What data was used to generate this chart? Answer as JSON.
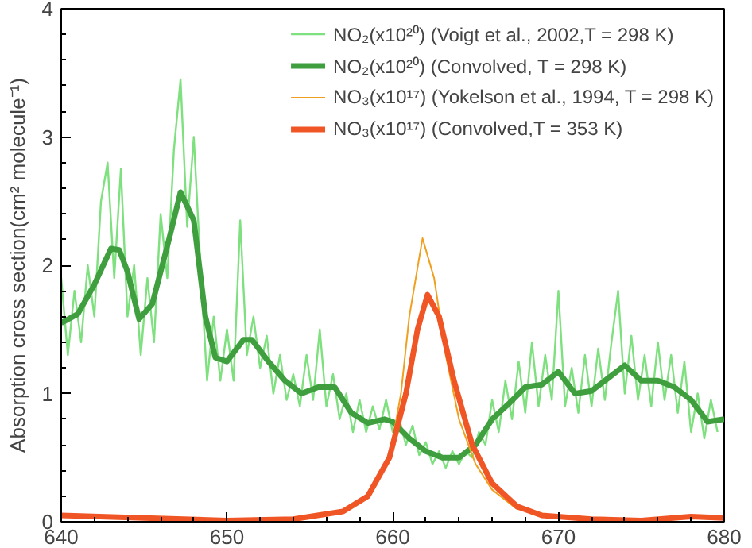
{
  "chart_data": {
    "type": "line",
    "xlim": [
      640,
      680
    ],
    "ylim": [
      0,
      4
    ],
    "xticks": [
      640,
      650,
      660,
      670,
      680
    ],
    "yticks": [
      0,
      1,
      2,
      3,
      4
    ],
    "ylabel": "Absorption cross section(cm² molecule⁻¹)",
    "grid": false,
    "legend": "top right",
    "series": [
      {
        "name": "NO₂(x10²⁰) (Voigt et al., 2002,T = 298 K)",
        "color": "#7ee07e",
        "x": [
          640.0,
          640.4,
          640.8,
          641.2,
          641.6,
          642.0,
          642.4,
          642.8,
          643.2,
          643.6,
          644.0,
          644.4,
          644.8,
          645.2,
          645.6,
          646.0,
          646.4,
          646.8,
          647.2,
          647.6,
          648.0,
          648.4,
          648.8,
          649.2,
          649.6,
          650.0,
          650.4,
          650.8,
          651.2,
          651.6,
          652.0,
          652.4,
          652.8,
          653.2,
          653.6,
          654.0,
          654.4,
          654.8,
          655.2,
          655.6,
          656.0,
          656.4,
          656.8,
          657.2,
          657.6,
          658.0,
          658.4,
          658.8,
          659.2,
          659.6,
          660.0,
          660.4,
          660.8,
          661.2,
          661.6,
          662.0,
          662.4,
          662.8,
          663.2,
          663.6,
          664.0,
          664.4,
          664.8,
          665.2,
          665.6,
          666.0,
          666.4,
          666.8,
          667.2,
          667.6,
          668.0,
          668.4,
          668.8,
          669.2,
          669.6,
          670.0,
          670.4,
          670.8,
          671.2,
          671.6,
          672.0,
          672.4,
          672.8,
          673.2,
          673.6,
          674.0,
          674.4,
          674.8,
          675.2,
          675.6,
          676.0,
          676.4,
          676.8,
          677.2,
          677.6,
          678.0,
          678.4,
          678.8,
          679.2,
          679.6
        ],
        "values": [
          1.9,
          1.3,
          1.8,
          1.4,
          2.0,
          1.6,
          2.5,
          2.8,
          1.9,
          2.75,
          1.6,
          2.0,
          1.3,
          1.9,
          1.4,
          2.4,
          1.9,
          2.9,
          3.45,
          2.3,
          3.0,
          2.0,
          1.1,
          1.6,
          1.1,
          1.5,
          1.1,
          2.35,
          1.3,
          1.6,
          1.2,
          1.45,
          1.0,
          1.3,
          0.95,
          1.15,
          0.9,
          1.3,
          0.95,
          1.5,
          0.9,
          1.15,
          0.8,
          1.0,
          0.7,
          0.95,
          0.7,
          0.9,
          0.72,
          0.95,
          0.7,
          0.8,
          0.6,
          0.75,
          0.52,
          0.62,
          0.45,
          0.55,
          0.42,
          0.55,
          0.45,
          0.55,
          0.5,
          0.7,
          0.6,
          0.95,
          0.7,
          1.1,
          0.8,
          1.25,
          0.85,
          1.4,
          0.9,
          1.3,
          0.95,
          1.8,
          0.9,
          1.2,
          0.85,
          1.3,
          0.9,
          1.35,
          0.95,
          1.4,
          1.8,
          1.0,
          1.45,
          0.95,
          1.3,
          0.9,
          1.4,
          0.95,
          1.3,
          0.85,
          1.25,
          0.7,
          1.0,
          0.65,
          0.95,
          0.7
        ]
      },
      {
        "name": "NO₂(x10²⁰) (Convolved, T = 298 K)",
        "color": "#3f9f3f",
        "x": [
          640,
          641,
          642,
          643,
          643.5,
          644,
          644.7,
          645.5,
          646.5,
          647.2,
          648,
          648.7,
          649.3,
          650,
          651,
          651.5,
          652.5,
          653.5,
          654.5,
          655.5,
          656.5,
          657.5,
          658.5,
          659.5,
          660,
          661,
          662,
          663,
          664,
          665,
          666,
          667,
          668,
          669,
          670,
          671,
          672,
          673,
          674,
          675,
          676,
          677,
          678,
          679,
          680
        ],
        "values": [
          1.55,
          1.62,
          1.85,
          2.13,
          2.12,
          1.95,
          1.58,
          1.7,
          2.2,
          2.57,
          2.35,
          1.6,
          1.28,
          1.25,
          1.42,
          1.42,
          1.25,
          1.1,
          1.0,
          1.05,
          1.05,
          0.85,
          0.77,
          0.8,
          0.78,
          0.65,
          0.55,
          0.5,
          0.5,
          0.6,
          0.8,
          0.92,
          1.05,
          1.07,
          1.17,
          1.0,
          1.02,
          1.12,
          1.22,
          1.1,
          1.1,
          1.05,
          0.95,
          0.78,
          0.8
        ]
      },
      {
        "name": "NO₃(x10¹⁷) (Yokelson et al., 1994, T = 298 K)",
        "color": "#f0a020",
        "x": [
          655,
          657,
          658.5,
          659.8,
          660.5,
          661,
          661.8,
          662.5,
          663.2,
          664,
          665,
          666,
          667.5,
          670
        ],
        "values": [
          0.03,
          0.08,
          0.2,
          0.5,
          1.0,
          1.6,
          2.21,
          1.9,
          1.3,
          0.8,
          0.45,
          0.25,
          0.1,
          0.04
        ]
      },
      {
        "name": "NO₃(x10¹⁷) (Convolved,T = 353 K)",
        "color": "#f05525",
        "x": [
          640,
          645,
          650,
          654,
          657,
          658.5,
          659.8,
          660.8,
          661.5,
          662.1,
          662.8,
          663.7,
          664.8,
          666,
          667.5,
          669,
          672,
          675,
          678,
          680
        ],
        "values": [
          0.05,
          0.03,
          0.01,
          0.02,
          0.08,
          0.2,
          0.5,
          1.0,
          1.5,
          1.77,
          1.6,
          1.1,
          0.6,
          0.3,
          0.12,
          0.05,
          0.02,
          0.01,
          0.04,
          0.03
        ]
      }
    ]
  }
}
